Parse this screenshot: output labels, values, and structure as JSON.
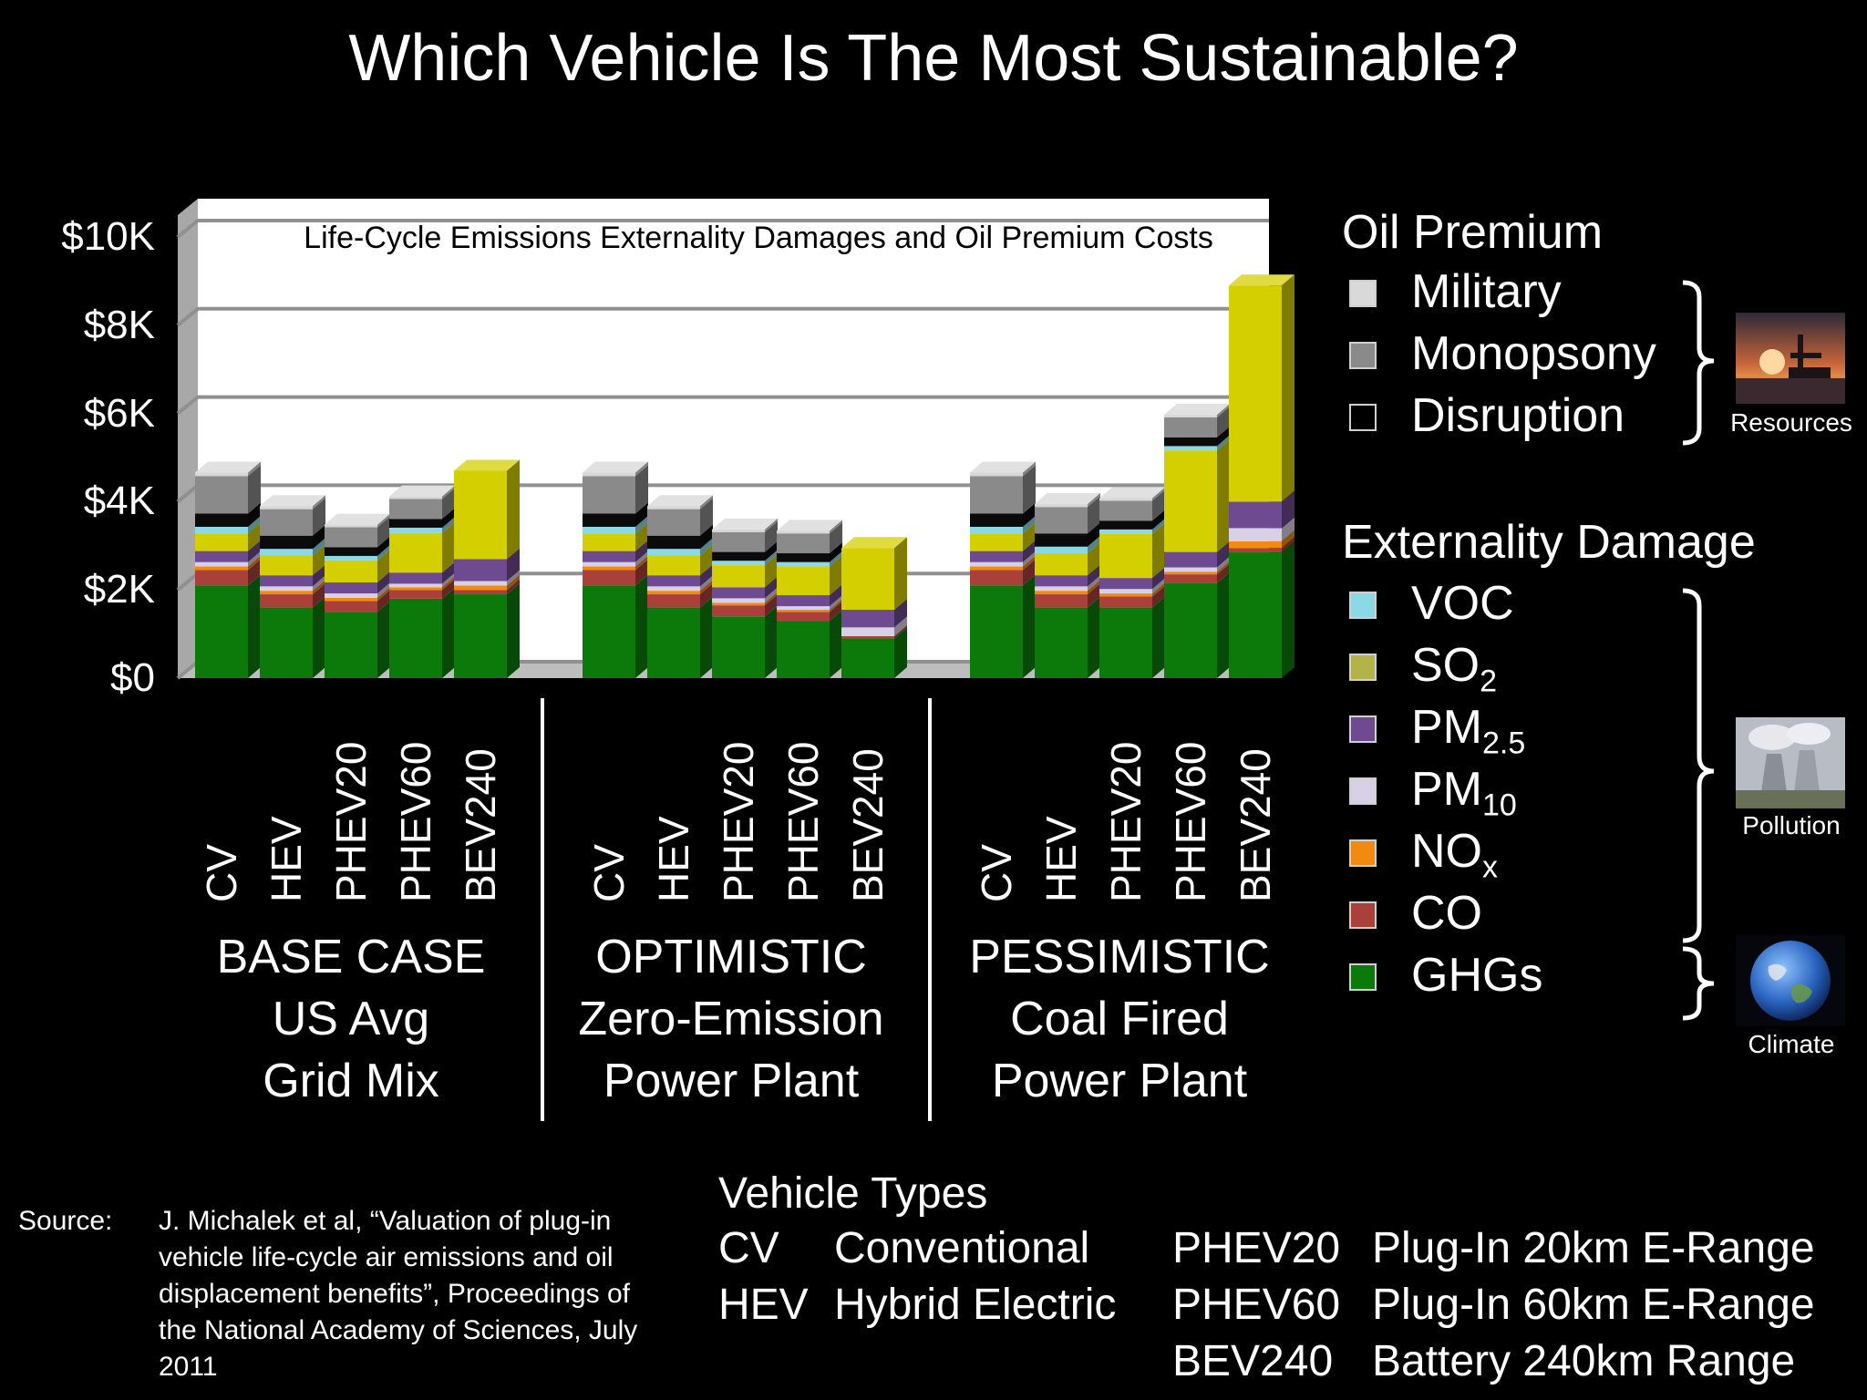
{
  "title": "Which Vehicle Is The Most Sustainable?",
  "chart_data": {
    "type": "bar",
    "stacked": true,
    "title": "Life-Cycle Emissions Externality Damages and Oil Premium Costs",
    "ylim": [
      0,
      10000
    ],
    "yticks": [
      "$0",
      "$2K",
      "$4K",
      "$6K",
      "$8K",
      "$10K"
    ],
    "grid": true,
    "legend_position": "right",
    "groups": [
      {
        "label_lines": [
          "BASE CASE",
          "US Avg",
          "Grid Mix"
        ]
      },
      {
        "label_lines": [
          "OPTIMISTIC",
          "Zero-Emission",
          "Power Plant"
        ]
      },
      {
        "label_lines": [
          "PESSIMISTIC",
          "Coal Fired",
          "Power Plant"
        ]
      }
    ],
    "categories": [
      "CV",
      "HEV",
      "PHEV20",
      "PHEV60",
      "BEV240"
    ],
    "series": [
      {
        "name": "GHGs",
        "color": "#0b7a0b",
        "values": [
          [
            2100,
            1600,
            1500,
            1800,
            1900
          ],
          [
            2100,
            1600,
            1400,
            1300,
            900
          ],
          [
            2100,
            1600,
            1600,
            2150,
            2850
          ]
        ]
      },
      {
        "name": "CO",
        "color": "#a9413a",
        "values": [
          [
            350,
            300,
            250,
            200,
            100
          ],
          [
            350,
            300,
            250,
            200,
            50
          ],
          [
            350,
            300,
            250,
            200,
            100
          ]
        ]
      },
      {
        "name": "NOx",
        "color": "#f08a10",
        "values": [
          [
            80,
            80,
            70,
            60,
            100
          ],
          [
            80,
            80,
            60,
            50,
            0
          ],
          [
            80,
            80,
            70,
            60,
            150
          ]
        ]
      },
      {
        "name": "PM10",
        "color": "#d8d0e4",
        "values": [
          [
            100,
            100,
            100,
            80,
            100
          ],
          [
            100,
            100,
            100,
            80,
            200
          ],
          [
            100,
            100,
            100,
            100,
            300
          ]
        ]
      },
      {
        "name": "PM2.5",
        "color": "#6e4a90",
        "values": [
          [
            250,
            250,
            250,
            250,
            500
          ],
          [
            250,
            250,
            250,
            250,
            400
          ],
          [
            250,
            250,
            250,
            350,
            600
          ]
        ]
      },
      {
        "name": "SO2",
        "color": "#d4cf00",
        "values": [
          [
            400,
            450,
            500,
            900,
            2000
          ],
          [
            400,
            450,
            500,
            650,
            1400
          ],
          [
            400,
            500,
            1000,
            2300,
            4900
          ]
        ]
      },
      {
        "name": "VOC",
        "color": "#8ad9e4",
        "values": [
          [
            150,
            150,
            100,
            120,
            0
          ],
          [
            150,
            150,
            100,
            100,
            0
          ],
          [
            150,
            150,
            100,
            100,
            0
          ]
        ]
      },
      {
        "name": "Disruption",
        "color": "#0b0b0b",
        "values": [
          [
            300,
            300,
            200,
            200,
            0
          ],
          [
            300,
            300,
            200,
            200,
            0
          ],
          [
            300,
            300,
            200,
            200,
            0
          ]
        ]
      },
      {
        "name": "Monopsony",
        "color": "#8a8a8a",
        "values": [
          [
            850,
            600,
            450,
            450,
            0
          ],
          [
            850,
            600,
            450,
            450,
            0
          ],
          [
            850,
            600,
            450,
            450,
            0
          ]
        ]
      },
      {
        "name": "Military",
        "color": "#d7d7d7",
        "values": [
          [
            80,
            70,
            60,
            60,
            0
          ],
          [
            80,
            70,
            60,
            60,
            0
          ],
          [
            80,
            70,
            60,
            60,
            0
          ]
        ]
      }
    ]
  },
  "legend": {
    "oil_heading": "Oil Premium",
    "oil_items": [
      {
        "label": "Military",
        "color": "#d9d9d9"
      },
      {
        "label": "Monopsony",
        "color": "#8a8a8a"
      },
      {
        "label": "Disruption",
        "color": "#000000"
      }
    ],
    "ext_heading": "Externality Damage",
    "ext_items": [
      {
        "label": "VOC",
        "sub": "",
        "color": "#8ad9e4"
      },
      {
        "label": "SO",
        "sub": "2",
        "color": "#b3b34a"
      },
      {
        "label": "PM",
        "sub": "2.5",
        "color": "#6e4a90"
      },
      {
        "label": "PM",
        "sub": "10",
        "color": "#d8d0e4"
      },
      {
        "label": "NO",
        "sub": "x",
        "color": "#f08a10"
      },
      {
        "label": "CO",
        "sub": "",
        "color": "#a9413a"
      },
      {
        "label": "GHGs",
        "sub": "",
        "color": "#0b7a0b"
      }
    ],
    "groups": [
      "Resources",
      "Pollution",
      "Climate"
    ]
  },
  "source": {
    "label": "Source:",
    "text": "J. Michalek et al, “Valuation of plug-in vehicle life-cycle air emissions and oil displacement benefits”, Proceedings of the National Academy of Sciences, July 2011"
  },
  "vehicle_types": {
    "title": "Vehicle Types",
    "items": [
      {
        "code": "CV",
        "desc": "Conventional"
      },
      {
        "code": "HEV",
        "desc": "Hybrid Electric"
      },
      {
        "code": "PHEV20",
        "desc": "Plug-In 20km E-Range"
      },
      {
        "code": "PHEV60",
        "desc": "Plug-In 60km E-Range"
      },
      {
        "code": "BEV240",
        "desc": "Battery 240km Range"
      }
    ]
  }
}
